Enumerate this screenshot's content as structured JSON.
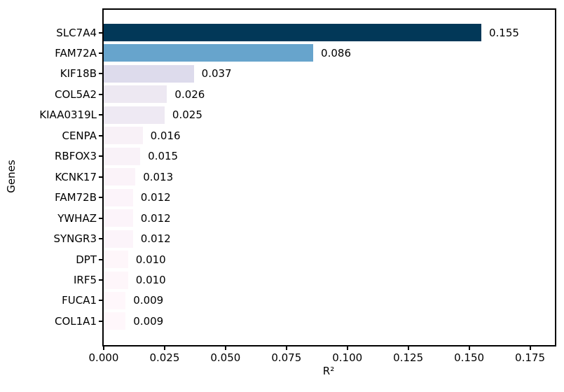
{
  "chart_data": {
    "type": "bar",
    "orientation": "horizontal",
    "title": "",
    "xlabel": "R²",
    "ylabel": "Genes",
    "categories": [
      "SLC7A4",
      "FAM72A",
      "KIF18B",
      "COL5A2",
      "KIAA0319L",
      "CENPA",
      "RBFOX3",
      "KCNK17",
      "FAM72B",
      "YWHAZ",
      "SYNGR3",
      "DPT",
      "IRF5",
      "FUCA1",
      "COL1A1"
    ],
    "values": [
      0.155,
      0.086,
      0.037,
      0.026,
      0.025,
      0.016,
      0.015,
      0.013,
      0.012,
      0.012,
      0.012,
      0.01,
      0.01,
      0.009,
      0.009
    ],
    "bar_labels": [
      "0.155",
      "0.086",
      "0.037",
      "0.026",
      "0.025",
      "0.016",
      "0.015",
      "0.013",
      "0.012",
      "0.012",
      "0.012",
      "0.010",
      "0.010",
      "0.009",
      "0.009"
    ],
    "bar_colors": [
      "#023858",
      "#67a4cc",
      "#dddbec",
      "#ede8f2",
      "#eee9f3",
      "#f8f1f7",
      "#f9f2f8",
      "#fbf3f9",
      "#fcf4fa",
      "#fcf4fa",
      "#fcf4fa",
      "#fef6fa",
      "#fef6fa",
      "#fff7fb",
      "#fff7fb"
    ],
    "colormap": "PuBu",
    "x_ticks": [
      "0.000",
      "0.025",
      "0.050",
      "0.075",
      "0.100",
      "0.125",
      "0.150",
      "0.175"
    ],
    "x_tick_values": [
      0.0,
      0.025,
      0.05,
      0.075,
      0.1,
      0.125,
      0.15,
      0.175
    ],
    "xlim": [
      0,
      0.1852
    ],
    "grid": false,
    "legend": null,
    "background_color": "#ffffff",
    "text_color": "#000000"
  }
}
